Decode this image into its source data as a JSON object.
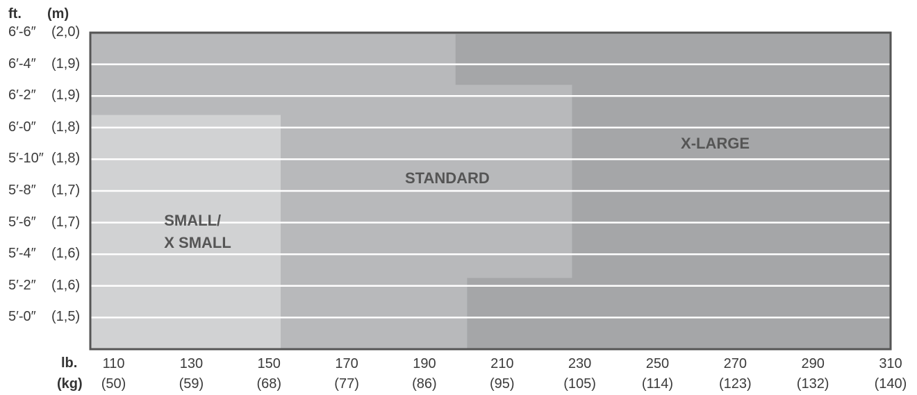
{
  "chart_data": {
    "type": "area",
    "y_unit_primary": "ft.",
    "y_unit_secondary": "(m)",
    "x_unit_primary": "lb.",
    "x_unit_secondary": "(kg)",
    "y_ticks": [
      {
        "ft": "6′-6″",
        "m": "(2,0)",
        "inches": 78
      },
      {
        "ft": "6′-4″",
        "m": "(1,9)",
        "inches": 76
      },
      {
        "ft": "6′-2″",
        "m": "(1,9)",
        "inches": 74
      },
      {
        "ft": "6′-0″",
        "m": "(1,8)",
        "inches": 72
      },
      {
        "ft": "5′-10″",
        "m": "(1,8)",
        "inches": 70
      },
      {
        "ft": "5′-8″",
        "m": "(1,7)",
        "inches": 68
      },
      {
        "ft": "5′-6″",
        "m": "(1,7)",
        "inches": 66
      },
      {
        "ft": "5′-4″",
        "m": "(1,6)",
        "inches": 64
      },
      {
        "ft": "5′-2″",
        "m": "(1,6)",
        "inches": 62
      },
      {
        "ft": "5′-0″",
        "m": "(1,5)",
        "inches": 60
      }
    ],
    "x_ticks": [
      {
        "lb": "110",
        "kg": "(50)",
        "value": 110
      },
      {
        "lb": "130",
        "kg": "(59)",
        "value": 130
      },
      {
        "lb": "150",
        "kg": "(68)",
        "value": 150
      },
      {
        "lb": "170",
        "kg": "(77)",
        "value": 170
      },
      {
        "lb": "190",
        "kg": "(86)",
        "value": 190
      },
      {
        "lb": "210",
        "kg": "(95)",
        "value": 210
      },
      {
        "lb": "230",
        "kg": "(105)",
        "value": 230
      },
      {
        "lb": "250",
        "kg": "(114)",
        "value": 250
      },
      {
        "lb": "270",
        "kg": "(123)",
        "value": 270
      },
      {
        "lb": "290",
        "kg": "(132)",
        "value": 290
      },
      {
        "lb": "310",
        "kg": "(140)",
        "value": 310
      }
    ],
    "regions": [
      {
        "label_lines": [
          "X-LARGE"
        ],
        "color": "#a5a6a8",
        "label_at": {
          "lb": 256,
          "in": 72
        },
        "outline": [
          [
            104,
            59
          ],
          [
            310,
            59
          ],
          [
            310,
            79
          ],
          [
            104,
            79
          ]
        ]
      },
      {
        "label_lines": [
          "STANDARD"
        ],
        "color": "#b8b9bb",
        "label_at": {
          "lb": 185,
          "in": 69.8
        },
        "outline": [
          [
            104,
            59
          ],
          [
            201,
            59
          ],
          [
            201,
            63.5
          ],
          [
            228,
            63.5
          ],
          [
            228,
            75.7
          ],
          [
            198,
            75.7
          ],
          [
            198,
            78.9
          ],
          [
            104,
            78.9
          ]
        ]
      },
      {
        "label_lines": [
          "SMALL/",
          "X SMALL"
        ],
        "color": "#d1d2d3",
        "label_at": {
          "lb": 123,
          "in": 66.4
        },
        "outline": [
          [
            104,
            59
          ],
          [
            153,
            59
          ],
          [
            153,
            73.8
          ],
          [
            104,
            73.8
          ]
        ]
      }
    ]
  }
}
